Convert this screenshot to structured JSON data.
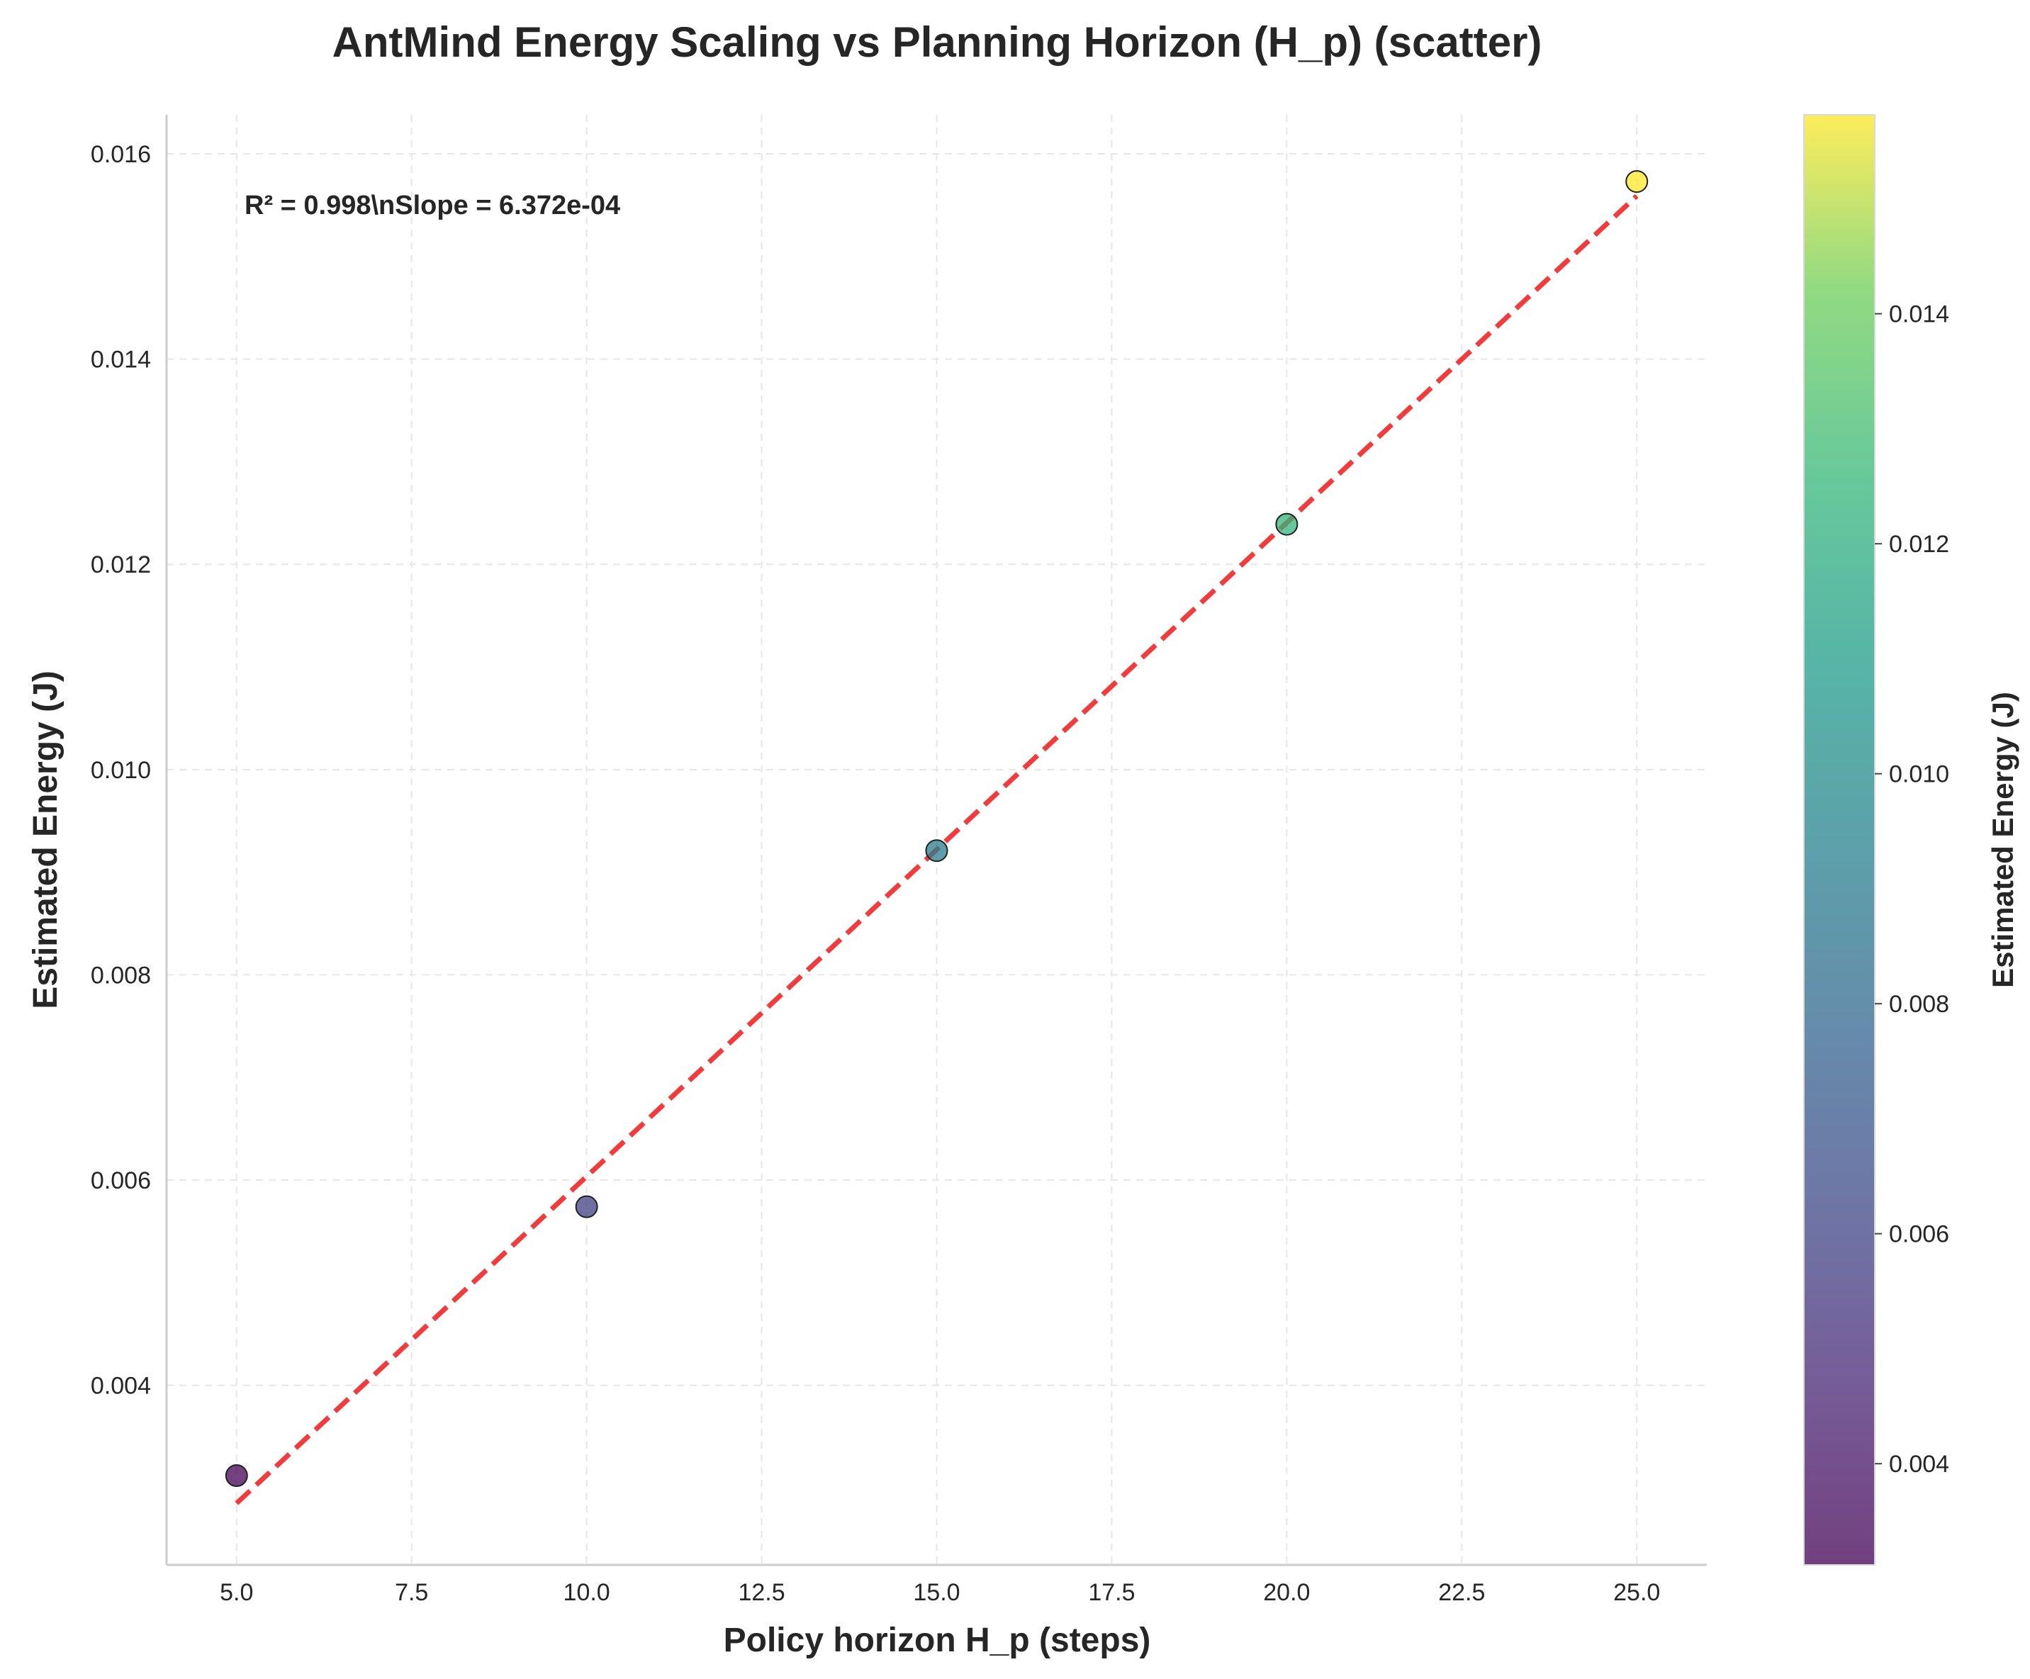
{
  "chart_data": {
    "type": "scatter",
    "title": "AntMind Energy Scaling vs Planning Horizon (H_p) (scatter)",
    "xlabel": "Policy horizon H_p (steps)",
    "ylabel": "Estimated Energy (J)",
    "xlim": [
      4.0,
      26.0
    ],
    "ylim": [
      0.00225,
      0.01638
    ],
    "xticks": [
      5.0,
      7.5,
      10.0,
      12.5,
      15.0,
      17.5,
      20.0,
      22.5,
      25.0
    ],
    "xtick_labels": [
      "5.0",
      "7.5",
      "10.0",
      "12.5",
      "15.0",
      "17.5",
      "20.0",
      "22.5",
      "25.0"
    ],
    "yticks": [
      0.004,
      0.006,
      0.008,
      0.01,
      0.012,
      0.014,
      0.016
    ],
    "ytick_labels": [
      "0.004",
      "0.006",
      "0.008",
      "0.010",
      "0.012",
      "0.014",
      "0.016"
    ],
    "grid": true,
    "x": [
      5,
      10,
      15,
      20,
      25
    ],
    "y": [
      0.00312,
      0.00574,
      0.00921,
      0.01239,
      0.01573
    ],
    "fit_line": {
      "x": [
        5,
        25
      ],
      "y": [
        0.00285,
        0.01559
      ],
      "color": "#f03232",
      "style": "dashed"
    },
    "annotation": "R² = 0.998\\nSlope = 6.372e-04",
    "colorbar": {
      "label": "Estimated Energy (J)",
      "range": [
        0.00312,
        0.01573
      ],
      "ticks": [
        0.004,
        0.006,
        0.008,
        0.01,
        0.012,
        0.014
      ],
      "tick_labels": [
        "0.004",
        "0.006",
        "0.008",
        "0.010",
        "0.012",
        "0.014"
      ],
      "colormap": "viridis"
    }
  }
}
